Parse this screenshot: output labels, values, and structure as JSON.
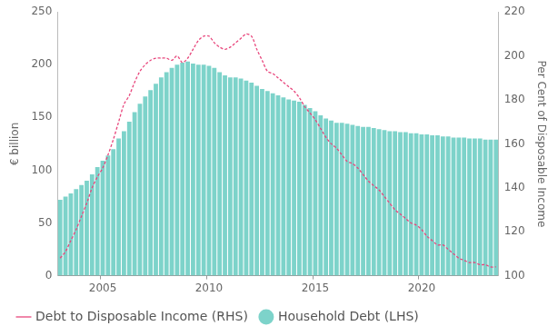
{
  "chart_data": {
    "type": "bar",
    "ylabel": "€ billion",
    "y2label": "Per Cent of Disposable Income",
    "categories": [
      null,
      null,
      null,
      null,
      null,
      null,
      null,
      null,
      "2005",
      null,
      null,
      null,
      null,
      null,
      null,
      null,
      null,
      null,
      null,
      null,
      null,
      null,
      null,
      null,
      null,
      null,
      null,
      null,
      "2010",
      null,
      null,
      null,
      null,
      null,
      null,
      null,
      null,
      null,
      null,
      null,
      null,
      null,
      null,
      null,
      null,
      null,
      null,
      null,
      "2015",
      null,
      null,
      null,
      null,
      null,
      null,
      null,
      null,
      null,
      null,
      null,
      null,
      null,
      null,
      null,
      null,
      null,
      null,
      null,
      "2020",
      null,
      null,
      null,
      null,
      null,
      null,
      null,
      null,
      null,
      null,
      null,
      null,
      null,
      null
    ],
    "series": [
      {
        "name": "Household Debt (LHS)",
        "type": "bar",
        "color": "#7dd3ca",
        "marker": "circle",
        "values": [
          72,
          75,
          78,
          82,
          86,
          90,
          96,
          103,
          109,
          114,
          120,
          130,
          137,
          146,
          155,
          163,
          170,
          176,
          182,
          188,
          193,
          197,
          200,
          202,
          203,
          201,
          200,
          200,
          199,
          197,
          193,
          190,
          188,
          188,
          187,
          185,
          183,
          180,
          177,
          175,
          173,
          171,
          169,
          167,
          166,
          165,
          162,
          159,
          156,
          152,
          149,
          147,
          145,
          145,
          144,
          143,
          142,
          141,
          141,
          140,
          139,
          138,
          137,
          137,
          136,
          136,
          135,
          135,
          134,
          134,
          133,
          133,
          132,
          132,
          131,
          131,
          131,
          130,
          130,
          130,
          129,
          129,
          129
        ]
      },
      {
        "name": "Debt to Disposable Income (RHS)",
        "type": "line",
        "axis": "y2",
        "color": "#e8467c",
        "line_style": "dashed",
        "values": [
          108,
          111,
          116,
          121,
          127,
          133,
          140,
          145,
          149,
          155,
          162,
          170,
          178,
          182,
          188,
          193,
          196,
          198,
          199,
          199,
          199,
          198,
          200,
          197,
          199,
          203,
          207,
          209,
          209,
          206,
          204,
          203,
          204,
          206,
          208,
          210,
          209,
          203,
          198,
          193,
          192,
          190,
          188,
          186,
          184,
          181,
          177,
          174,
          171,
          167,
          163,
          160,
          158,
          155,
          152,
          151,
          149,
          146,
          143,
          141,
          139,
          136,
          133,
          130,
          128,
          126,
          124,
          123,
          121,
          118,
          116,
          114,
          114,
          112,
          110,
          108,
          107,
          106,
          106,
          105,
          105,
          104,
          104
        ]
      }
    ],
    "ylim": [
      0,
      250
    ],
    "yticks": [
      0,
      50,
      100,
      150,
      200,
      250
    ],
    "y2lim": [
      100,
      220
    ],
    "y2ticks": [
      100,
      120,
      140,
      160,
      180,
      200,
      220
    ],
    "grid": false,
    "legend": "bottom"
  }
}
